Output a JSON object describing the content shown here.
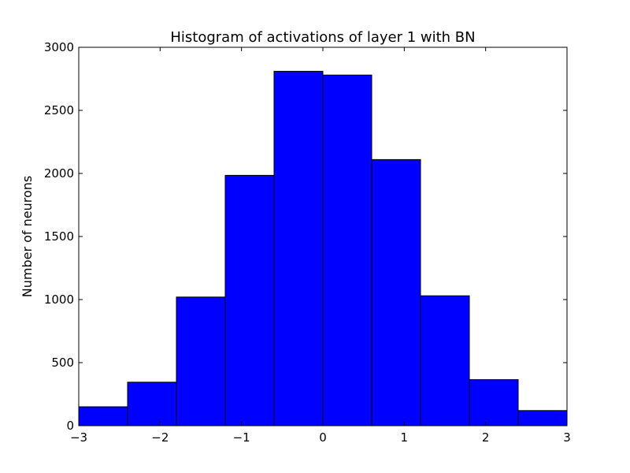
{
  "chart_data": {
    "type": "bar",
    "title": "Histogram of activations of layer 1  with BN",
    "xlabel": "",
    "ylabel": "Number of neurons",
    "bins": [
      {
        "x0": -3.0,
        "x1": -2.4,
        "count": 150
      },
      {
        "x0": -2.4,
        "x1": -1.8,
        "count": 345
      },
      {
        "x0": -1.8,
        "x1": -1.2,
        "count": 1020
      },
      {
        "x0": -1.2,
        "x1": -0.6,
        "count": 1985
      },
      {
        "x0": -0.6,
        "x1": 0.0,
        "count": 2810
      },
      {
        "x0": 0.0,
        "x1": 0.6,
        "count": 2780
      },
      {
        "x0": 0.6,
        "x1": 1.2,
        "count": 2110
      },
      {
        "x0": 1.2,
        "x1": 1.8,
        "count": 1030
      },
      {
        "x0": 1.8,
        "x1": 2.4,
        "count": 365
      },
      {
        "x0": 2.4,
        "x1": 3.0,
        "count": 120
      }
    ],
    "xlim": [
      -3,
      3
    ],
    "ylim": [
      0,
      3000
    ],
    "xticks": [
      -3,
      -2,
      -1,
      0,
      1,
      2,
      3
    ],
    "xtick_labels": [
      "−3",
      "−2",
      "−1",
      "0",
      "1",
      "2",
      "3"
    ],
    "yticks": [
      0,
      500,
      1000,
      1500,
      2000,
      2500,
      3000
    ],
    "ytick_labels": [
      "0",
      "500",
      "1000",
      "1500",
      "2000",
      "2500",
      "3000"
    ],
    "grid": false,
    "bar_color": "#0000ff",
    "edge_color": "#000000"
  }
}
